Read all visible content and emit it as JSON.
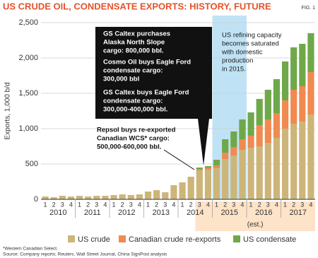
{
  "chart_data": {
    "type": "bar",
    "stacked": true,
    "title": "US CRUDE OIL, CONDENSATE EXPORTS: HISTORY, FUTURE",
    "figure_label": "FIG. 1",
    "y_label": "Exports, 1,000 b/d",
    "categories": [
      "1",
      "2",
      "3",
      "4",
      "1",
      "2",
      "3",
      "4",
      "1",
      "2",
      "3",
      "4",
      "1",
      "2",
      "3",
      "4",
      "1",
      "2",
      "3",
      "4",
      "1",
      "2",
      "3",
      "4",
      "1",
      "2",
      "3",
      "4",
      "1",
      "2",
      "3",
      "4"
    ],
    "years": [
      "2010",
      "2011",
      "2012",
      "2013",
      "2014",
      "2015",
      "2016",
      "2017"
    ],
    "series": [
      {
        "name": "US crude",
        "color": "#cdb57a",
        "values": [
          40,
          30,
          50,
          40,
          50,
          40,
          50,
          50,
          60,
          70,
          60,
          70,
          110,
          130,
          100,
          200,
          240,
          320,
          410,
          420,
          440,
          570,
          620,
          700,
          730,
          750,
          800,
          870,
          1000,
          1070,
          1100,
          1200
        ]
      },
      {
        "name": "Canadian crude re-exports",
        "color": "#f08a50",
        "values": [
          null,
          null,
          null,
          null,
          null,
          null,
          null,
          null,
          null,
          null,
          null,
          null,
          null,
          null,
          null,
          null,
          null,
          null,
          20,
          30,
          40,
          90,
          120,
          150,
          170,
          300,
          330,
          350,
          400,
          480,
          500,
          600
        ]
      },
      {
        "name": "US condensate",
        "color": "#6fa84a",
        "values": [
          null,
          null,
          null,
          null,
          null,
          null,
          null,
          null,
          null,
          null,
          null,
          null,
          null,
          null,
          null,
          null,
          null,
          null,
          20,
          20,
          80,
          190,
          220,
          280,
          330,
          370,
          420,
          480,
          550,
          600,
          600,
          550
        ]
      }
    ],
    "ylim": [
      0,
      2500
    ],
    "yticks": [
      0,
      500,
      {
        "value": 1000,
        "label": "1,000"
      },
      {
        "value": 1500,
        "label": "1,500"
      },
      {
        "value": 2000,
        "label": "2,000"
      },
      {
        "value": 2500,
        "label": "2,500"
      }
    ],
    "grid": true,
    "estimate_label": "(est.)",
    "annotations": [
      [
        "GS Caltex purchases",
        "Alaska North Slope",
        "cargo: 800,000 bbl."
      ],
      [
        "Cosmo Oil buys Eagle Ford",
        "condensate cargo:",
        "300,000 bbl"
      ],
      [
        "GS Caltex buys Eagle Ford",
        "condensate cargo:",
        "300,000-400,000 bbl."
      ],
      [
        "Repsol buys re-exported",
        "Canadian WCS* cargo:",
        "500,000-600,000 bbl."
      ],
      [
        "US refining capacity",
        "becomes saturated",
        "with domestic",
        "production",
        "in 2015."
      ]
    ],
    "footnotes": [
      "*Western Canadian Select.",
      "Source: Company reports; Reuters, Wall Street Journal, China SignPost analysis"
    ]
  }
}
